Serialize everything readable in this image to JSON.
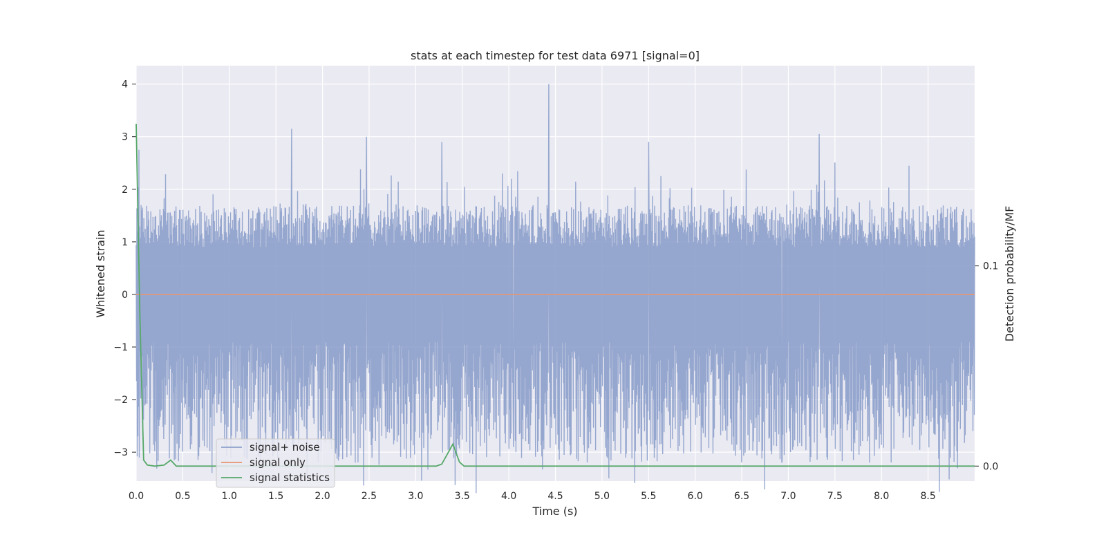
{
  "chart_data": {
    "type": "line",
    "title": "stats at each timestep for test data 6971 [signal=0]",
    "xlabel": "Time (s)",
    "ylabel": "Whitened strain",
    "y2label": "Detection probability/MF",
    "xlim": [
      0.0,
      9.0
    ],
    "ylim": [
      -3.55,
      4.35
    ],
    "y2lim": [
      -0.0075,
      0.2
    ],
    "xticks": [
      "0.0",
      "0.5",
      "1.0",
      "1.5",
      "2.0",
      "2.5",
      "3.0",
      "3.5",
      "4.0",
      "4.5",
      "5.0",
      "5.5",
      "6.0",
      "6.5",
      "7.0",
      "7.5",
      "8.0",
      "8.5"
    ],
    "yticks": [
      "4",
      "3",
      "2",
      "1",
      "0",
      "−1",
      "−2",
      "−3"
    ],
    "y2ticks": [
      "0.1",
      "0.0"
    ],
    "grid": true,
    "legend_position": "lower-left",
    "colors": {
      "signal_noise": "#8da0cb",
      "signal_only": "#e6956f",
      "signal_statistics": "#55a868",
      "background": "#eaeaf2",
      "grid": "#ffffff"
    },
    "series": [
      {
        "name": "signal+ noise",
        "axis": "left",
        "description_values": "dense noise, mostly within [-1.8, 1.8], peak ~4.0 at t=4.43",
        "noise_band": [
          -1.6,
          1.7
        ],
        "spikes": [
          {
            "x": 0.03,
            "y": 2.75
          },
          {
            "x": 0.02,
            "y": -2.7
          },
          {
            "x": 1.67,
            "y": 3.15
          },
          {
            "x": 2.47,
            "y": 3.0
          },
          {
            "x": 2.35,
            "y": -3.2
          },
          {
            "x": 4.43,
            "y": 4.0
          },
          {
            "x": 6.93,
            "y": -3.2
          },
          {
            "x": 7.33,
            "y": 3.05
          },
          {
            "x": 7.7,
            "y": -3.15
          },
          {
            "x": 3.28,
            "y": 2.9
          },
          {
            "x": 4.05,
            "y": -2.9
          },
          {
            "x": 5.5,
            "y": 2.9
          }
        ]
      },
      {
        "name": "signal only",
        "axis": "left",
        "x": [
          0.0,
          9.0
        ],
        "y": [
          0.0,
          0.0
        ]
      },
      {
        "name": "signal statistics",
        "axis": "right",
        "x": [
          0.0,
          0.04,
          0.08,
          0.12,
          0.2,
          0.3,
          0.37,
          0.43,
          0.5,
          1.0,
          2.0,
          3.0,
          3.22,
          3.28,
          3.4,
          3.47,
          3.52,
          4.0,
          5.0,
          6.0,
          7.0,
          8.0,
          9.0
        ],
        "y": [
          0.171,
          0.075,
          0.003,
          0.0005,
          0.0,
          0.0005,
          0.003,
          0.0,
          0.0,
          0.0,
          0.0,
          0.0,
          0.0,
          0.001,
          0.011,
          0.002,
          0.0,
          0.0,
          0.0,
          0.0,
          0.0,
          0.0,
          0.0
        ]
      }
    ]
  }
}
